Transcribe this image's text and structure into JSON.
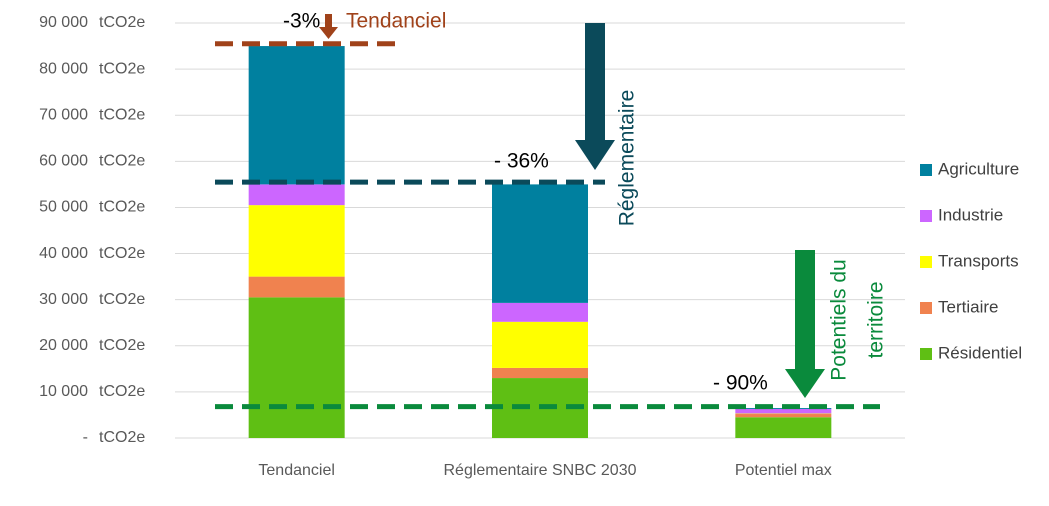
{
  "chart_data": {
    "type": "stacked_bar",
    "categories": [
      "Tendanciel",
      "Réglementaire SNBC 2030",
      "Potentiel max"
    ],
    "series": [
      {
        "name": "Résidentiel",
        "color": "#5fbf14",
        "values": [
          30500,
          13000,
          4500
        ]
      },
      {
        "name": "Tertiaire",
        "color": "#f0824f",
        "values": [
          4500,
          2200,
          700
        ]
      },
      {
        "name": "Transports",
        "color": "#ffff00",
        "values": [
          15500,
          10000,
          100
        ]
      },
      {
        "name": "Industrie",
        "color": "#cc66ff",
        "values": [
          4500,
          4100,
          1000
        ]
      },
      {
        "name": "Agriculture",
        "color": "#00809f",
        "values": [
          30000,
          25700,
          200
        ]
      }
    ],
    "y_unit": "tCO2e",
    "ylim": [
      0,
      90000
    ],
    "yticks": [
      {
        "value": 0,
        "label": "-"
      },
      {
        "value": 10000,
        "label": "10 000"
      },
      {
        "value": 20000,
        "label": "20 000"
      },
      {
        "value": 30000,
        "label": "30 000"
      },
      {
        "value": 40000,
        "label": "40 000"
      },
      {
        "value": 50000,
        "label": "50 000"
      },
      {
        "value": 60000,
        "label": "60 000"
      },
      {
        "value": 70000,
        "label": "70 000"
      },
      {
        "value": 80000,
        "label": "80 000"
      },
      {
        "value": 90000,
        "label": "90 000"
      }
    ],
    "grid": true,
    "legend": "right",
    "reference_lines": [
      {
        "value": 85500,
        "color": "#a0421a"
      },
      {
        "value": 55500,
        "color": "#0b4a5a"
      },
      {
        "value": 6800,
        "color": "#0a8a3c"
      }
    ],
    "annotations": [
      "-3%",
      "Tendanciel",
      "- 36%",
      "Réglementaire",
      "- 90%",
      "Potentiels du",
      "territoire"
    ]
  }
}
